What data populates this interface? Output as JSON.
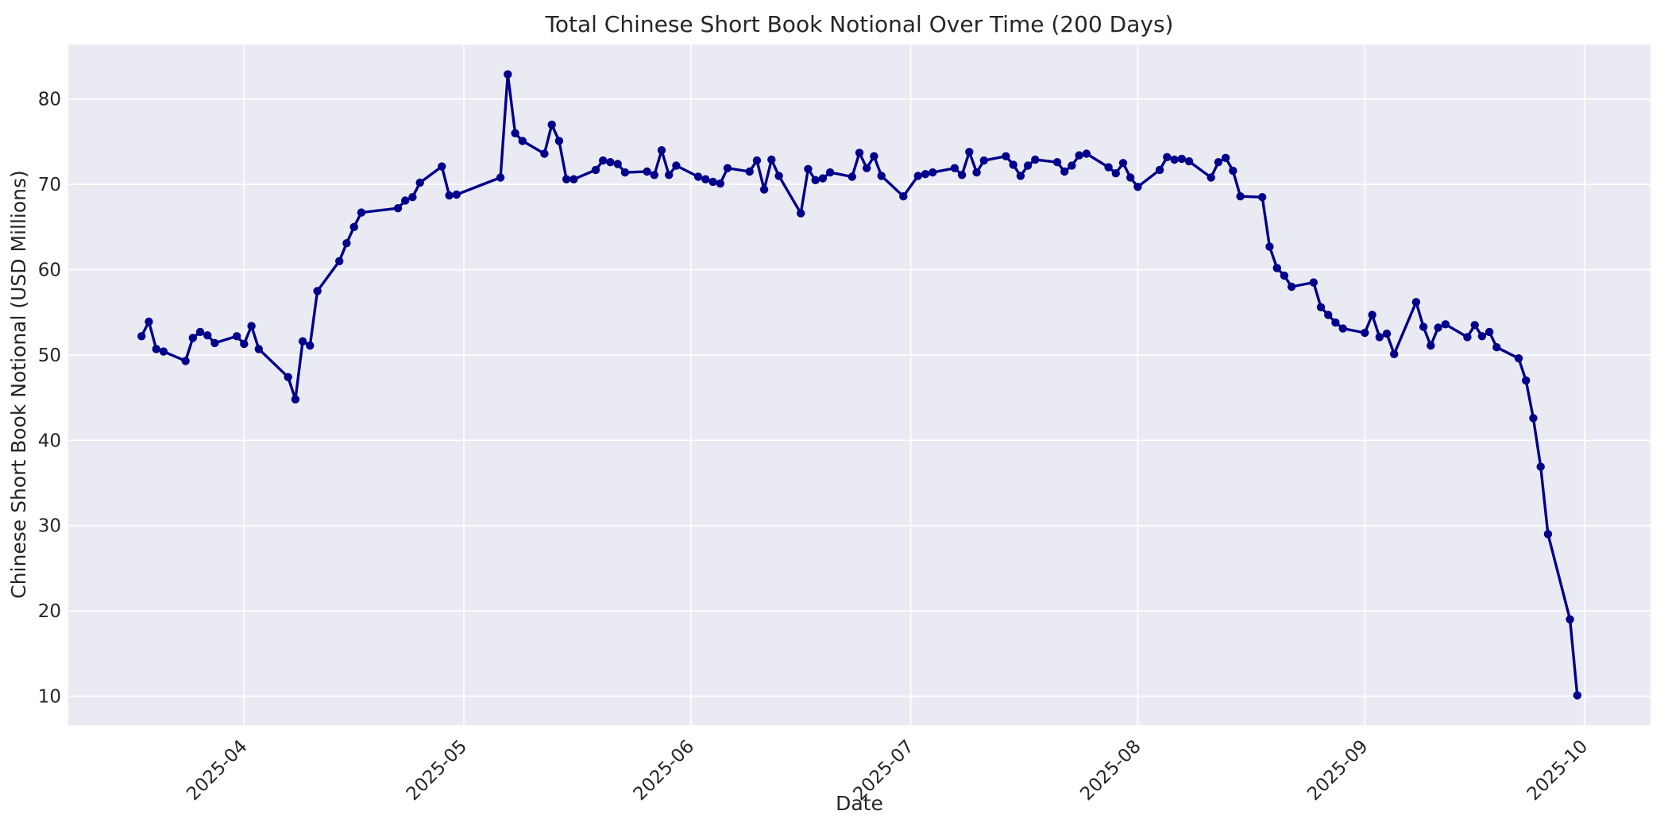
{
  "page": {
    "background": "#ffffff"
  },
  "chart_data": {
    "type": "line",
    "title": "Total Chinese Short Book Notional Over Time (200 Days)",
    "xlabel": "Date",
    "ylabel": "Chinese Short Book Notional (USD Millions)",
    "x_tick_labels": [
      "2025-04",
      "2025-05",
      "2025-06",
      "2025-07",
      "2025-08",
      "2025-09",
      "2025-10"
    ],
    "x_tick_dates": [
      "2025-04-01",
      "2025-05-01",
      "2025-06-01",
      "2025-07-01",
      "2025-08-01",
      "2025-09-01",
      "2025-10-01"
    ],
    "y_ticks": [
      10,
      20,
      30,
      40,
      50,
      60,
      70,
      80
    ],
    "xlim": [
      "2025-03-08",
      "2025-10-10"
    ],
    "ylim": [
      6.6,
      86.4
    ],
    "grid": true,
    "legend": false,
    "style": {
      "line_color": "#00008b",
      "marker": "circle",
      "plot_bg": "#eaeaf2",
      "grid_color": "#ffffff",
      "text_color": "#262626"
    },
    "series": [
      {
        "dates": [
          "2025-03-18",
          "2025-03-19",
          "2025-03-20",
          "2025-03-21",
          "2025-03-24",
          "2025-03-25",
          "2025-03-26",
          "2025-03-27",
          "2025-03-28",
          "2025-03-31",
          "2025-04-01",
          "2025-04-02",
          "2025-04-03",
          "2025-04-07",
          "2025-04-08",
          "2025-04-09",
          "2025-04-10",
          "2025-04-11",
          "2025-04-14",
          "2025-04-15",
          "2025-04-16",
          "2025-04-17",
          "2025-04-22",
          "2025-04-23",
          "2025-04-24",
          "2025-04-25",
          "2025-04-28",
          "2025-04-29",
          "2025-04-30",
          "2025-05-06",
          "2025-05-07",
          "2025-05-08",
          "2025-05-09",
          "2025-05-12",
          "2025-05-13",
          "2025-05-14",
          "2025-05-15",
          "2025-05-16",
          "2025-05-19",
          "2025-05-20",
          "2025-05-21",
          "2025-05-22",
          "2025-05-23",
          "2025-05-26",
          "2025-05-27",
          "2025-05-28",
          "2025-05-29",
          "2025-05-30",
          "2025-06-02",
          "2025-06-03",
          "2025-06-04",
          "2025-06-05",
          "2025-06-06",
          "2025-06-09",
          "2025-06-10",
          "2025-06-11",
          "2025-06-12",
          "2025-06-13",
          "2025-06-16",
          "2025-06-17",
          "2025-06-18",
          "2025-06-19",
          "2025-06-20",
          "2025-06-23",
          "2025-06-24",
          "2025-06-25",
          "2025-06-26",
          "2025-06-27",
          "2025-06-30",
          "2025-07-02",
          "2025-07-03",
          "2025-07-04",
          "2025-07-07",
          "2025-07-08",
          "2025-07-09",
          "2025-07-10",
          "2025-07-11",
          "2025-07-14",
          "2025-07-15",
          "2025-07-16",
          "2025-07-17",
          "2025-07-18",
          "2025-07-21",
          "2025-07-22",
          "2025-07-23",
          "2025-07-24",
          "2025-07-25",
          "2025-07-28",
          "2025-07-29",
          "2025-07-30",
          "2025-07-31",
          "2025-08-01",
          "2025-08-04",
          "2025-08-05",
          "2025-08-06",
          "2025-08-07",
          "2025-08-08",
          "2025-08-11",
          "2025-08-12",
          "2025-08-13",
          "2025-08-14",
          "2025-08-15",
          "2025-08-18",
          "2025-08-19",
          "2025-08-20",
          "2025-08-21",
          "2025-08-22",
          "2025-08-25",
          "2025-08-26",
          "2025-08-27",
          "2025-08-28",
          "2025-08-29",
          "2025-09-01",
          "2025-09-02",
          "2025-09-03",
          "2025-09-04",
          "2025-09-05",
          "2025-09-08",
          "2025-09-09",
          "2025-09-10",
          "2025-09-11",
          "2025-09-12",
          "2025-09-15",
          "2025-09-16",
          "2025-09-17",
          "2025-09-18",
          "2025-09-19",
          "2025-09-22",
          "2025-09-23",
          "2025-09-24",
          "2025-09-25",
          "2025-09-26",
          "2025-09-29",
          "2025-09-30"
        ],
        "values": [
          52.2,
          53.9,
          50.7,
          50.4,
          49.3,
          52.0,
          52.7,
          52.3,
          51.4,
          52.2,
          51.3,
          53.4,
          50.7,
          47.4,
          44.8,
          51.6,
          51.1,
          57.5,
          61.0,
          63.1,
          65.0,
          66.7,
          67.2,
          68.1,
          68.5,
          70.2,
          72.1,
          68.7,
          68.8,
          70.8,
          82.9,
          76.0,
          75.1,
          73.6,
          77.0,
          75.1,
          70.6,
          70.6,
          71.7,
          72.8,
          72.6,
          72.4,
          71.4,
          71.5,
          71.1,
          74.0,
          71.1,
          72.2,
          70.9,
          70.6,
          70.3,
          70.1,
          71.9,
          71.5,
          72.8,
          69.4,
          72.9,
          71.0,
          66.6,
          71.8,
          70.5,
          70.7,
          71.4,
          70.9,
          73.7,
          71.9,
          73.3,
          71.0,
          68.6,
          71.0,
          71.2,
          71.4,
          71.9,
          71.1,
          73.8,
          71.4,
          72.8,
          73.3,
          72.3,
          71.0,
          72.2,
          72.9,
          72.6,
          71.5,
          72.2,
          73.4,
          73.6,
          72.0,
          71.3,
          72.5,
          70.8,
          69.7,
          71.7,
          73.2,
          72.9,
          73.0,
          72.7,
          70.8,
          72.6,
          73.1,
          71.6,
          68.6,
          68.5,
          62.7,
          60.2,
          59.3,
          58.0,
          58.5,
          55.6,
          54.7,
          53.8,
          53.1,
          52.6,
          54.7,
          52.1,
          52.5,
          50.1,
          56.2,
          53.3,
          51.1,
          53.2,
          53.6,
          52.1,
          53.5,
          52.2,
          52.7,
          50.9,
          49.6,
          47.0,
          42.6,
          36.9,
          29.0,
          19.0,
          10.1
        ]
      }
    ]
  }
}
